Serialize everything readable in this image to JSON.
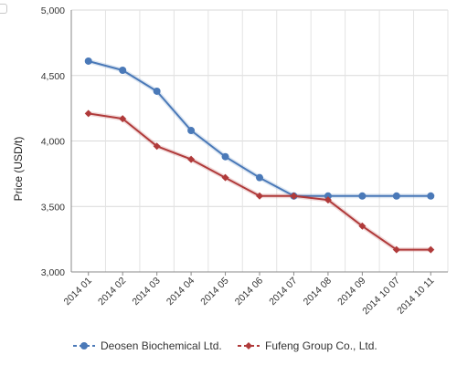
{
  "chart_data": {
    "type": "line",
    "title": "",
    "xlabel": "",
    "ylabel": "Price (USD/t)",
    "ylim": [
      3000,
      5000
    ],
    "yticks": [
      "3,000",
      "3,500",
      "4,000",
      "4,500",
      "5,000"
    ],
    "ytick_values": [
      3000,
      3500,
      4000,
      4500,
      5000
    ],
    "categories": [
      "2014 01",
      "2014 02",
      "2014 03",
      "2014 04",
      "2014 05",
      "2014 06",
      "2014 07",
      "2014 08",
      "2014 09",
      "2014 10 07",
      "2014 10 11"
    ],
    "grid": true,
    "legend_position": "bottom",
    "series": [
      {
        "name": "Deosen Biochemical Ltd.",
        "color": "#4a79b8",
        "marker": "circle",
        "values": [
          4610,
          4540,
          4380,
          4080,
          3880,
          3720,
          3580,
          3580,
          3580,
          3580,
          3580
        ]
      },
      {
        "name": "Fufeng Group Co., Ltd.",
        "color": "#b03a3a",
        "marker": "diamond",
        "values": [
          4210,
          4170,
          3960,
          3860,
          3720,
          3580,
          3580,
          3550,
          3350,
          3170,
          3170
        ]
      }
    ]
  }
}
